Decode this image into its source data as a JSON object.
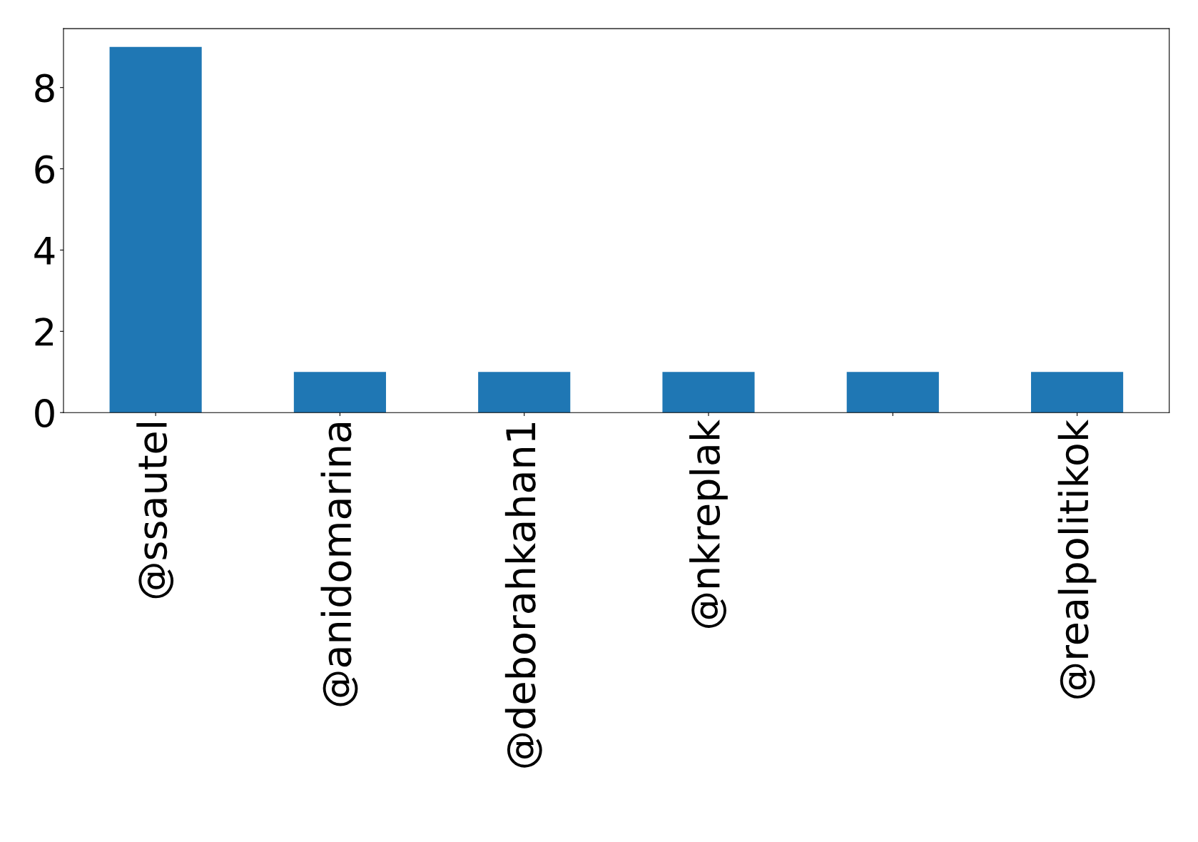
{
  "chart_data": {
    "type": "bar",
    "categories": [
      "@ssautel",
      "@anidomarina",
      "@deborahkahan1",
      "@nkreplak",
      null,
      "@realpolitikok"
    ],
    "values": [
      9,
      1,
      1,
      1,
      1,
      1
    ],
    "color": "#1f77b4",
    "ylim": [
      0,
      9.45
    ],
    "yticks": [
      0,
      2,
      4,
      6,
      8
    ],
    "grid": false
  }
}
